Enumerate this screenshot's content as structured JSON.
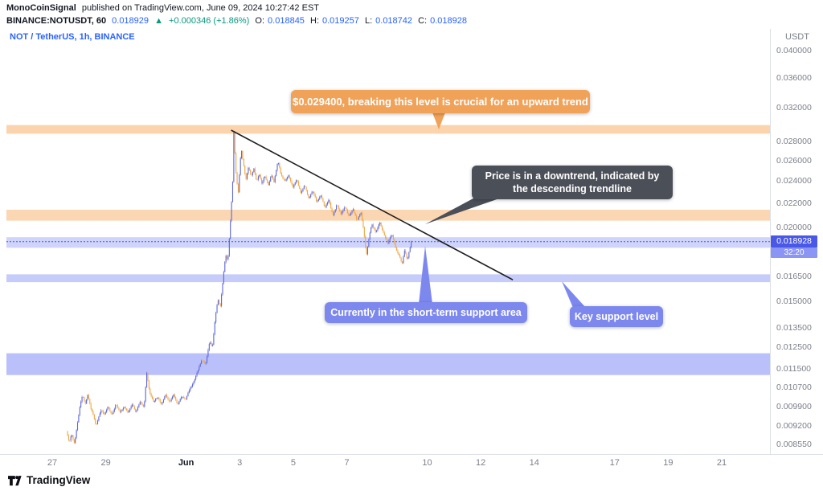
{
  "meta": {
    "publisher": "MonoCoinSignal",
    "published_line": "published on TradingView.com, June 09, 2024 10:27:42 EST",
    "symbol": "BINANCE:NOTUSDT, 60",
    "last_price": "0.018929",
    "direction_arrow": "▲",
    "change": "+0.000346 (+1.86%)",
    "ohlc": {
      "o_label": "O:",
      "o": "0.018845",
      "h_label": "H:",
      "h": "0.019257",
      "l_label": "L:",
      "l": "0.018742",
      "c_label": "C:",
      "c": "0.018928"
    }
  },
  "chart_legend": "NOT / TetherUS, 1h, BINANCE",
  "annotations": {
    "resistance_callout": "$0.029400, breaking this level is crucial for an upward trend",
    "downtrend_callout": "Price is in a downtrend, indicated by the descending trendline",
    "support_callout": "Currently in the short-term support area",
    "key_support_callout": "Key support level"
  },
  "price_axis": {
    "currency_label": "USDT",
    "labels": [
      "0.040000",
      "0.036000",
      "0.032000",
      "0.028000",
      "0.026000",
      "0.024000",
      "0.022000",
      "0.020000",
      "0.016500",
      "0.015000",
      "0.013500",
      "0.012500",
      "0.011500",
      "0.010700",
      "0.009900",
      "0.009200",
      "0.008550"
    ],
    "current_price_label": "0.018928",
    "countdown": "32:20"
  },
  "time_axis": {
    "labels": [
      {
        "text": "27",
        "day": 0
      },
      {
        "text": "29",
        "day": 2
      },
      {
        "text": "Jun",
        "day": 5,
        "major": true
      },
      {
        "text": "3",
        "day": 7
      },
      {
        "text": "5",
        "day": 9
      },
      {
        "text": "7",
        "day": 11
      },
      {
        "text": "10",
        "day": 14
      },
      {
        "text": "12",
        "day": 16
      },
      {
        "text": "14",
        "day": 18
      },
      {
        "text": "17",
        "day": 21
      },
      {
        "text": "19",
        "day": 23
      },
      {
        "text": "21",
        "day": 25
      }
    ]
  },
  "footer": {
    "brand": "TradingView"
  },
  "colors": {
    "accent_blue": "#2962ff",
    "green": "#089981",
    "text_dark": "#131722",
    "axis_text": "#7b7f8a",
    "up_candle": "#5e66d8",
    "down_candle": "#f0a43e",
    "trendline": "#1f1f1f",
    "callout_orange": "#f0a259",
    "callout_gray": "#4b4f58",
    "callout_blue": "#7d88ee",
    "price_tag_bg": "#4a58e8",
    "countdown_bg": "#8b95f4"
  },
  "chart_data": {
    "type": "candlestick",
    "symbol": "NOT/USDT",
    "exchange": "BINANCE",
    "timeframe": "1h",
    "scale": "log",
    "y_axis_range": [
      0.00826,
      0.0415
    ],
    "x_axis_note": "days since May 27 2024 00:00, axis drawn May 27 - Jun 21",
    "t_start": 0.55,
    "t_end": 13.43,
    "current_price": 0.018928,
    "trendline": {
      "from_day": 6.68,
      "from_price": 0.0293,
      "to_day": 17.2,
      "to_price": 0.0163
    },
    "bands": [
      {
        "name": "resistance-major",
        "price_from": 0.0289,
        "price_to": 0.0299,
        "fill": "rgba(247,174,103,0.55)"
      },
      {
        "name": "resistance-minor",
        "price_from": 0.02055,
        "price_to": 0.02145,
        "fill": "rgba(247,174,103,0.50)"
      },
      {
        "name": "support-current",
        "price_from": 0.01848,
        "price_to": 0.01926,
        "fill": "rgba(129,141,245,0.38)"
      },
      {
        "name": "support-key",
        "price_from": 0.01615,
        "price_to": 0.01665,
        "fill": "rgba(129,141,245,0.45)"
      },
      {
        "name": "support-deep",
        "price_from": 0.01122,
        "price_to": 0.01222,
        "fill": "rgba(129,141,245,0.55)"
      }
    ],
    "price_path": [
      [
        0.55,
        0.009
      ],
      [
        0.65,
        0.00862
      ],
      [
        0.75,
        0.0089
      ],
      [
        0.85,
        0.00855
      ],
      [
        0.95,
        0.0092
      ],
      [
        1.05,
        0.0099
      ],
      [
        1.15,
        0.0104
      ],
      [
        1.25,
        0.01
      ],
      [
        1.35,
        0.0104
      ],
      [
        1.45,
        0.0099
      ],
      [
        1.55,
        0.0096
      ],
      [
        1.65,
        0.0092
      ],
      [
        1.75,
        0.0095
      ],
      [
        1.85,
        0.0098
      ],
      [
        1.95,
        0.0096
      ],
      [
        2.1,
        0.0099
      ],
      [
        2.25,
        0.0096
      ],
      [
        2.4,
        0.01
      ],
      [
        2.55,
        0.0097
      ],
      [
        2.7,
        0.0099
      ],
      [
        2.85,
        0.0097
      ],
      [
        3.0,
        0.01
      ],
      [
        3.15,
        0.0097
      ],
      [
        3.3,
        0.0101
      ],
      [
        3.45,
        0.0099
      ],
      [
        3.55,
        0.0113
      ],
      [
        3.65,
        0.0105
      ],
      [
        3.8,
        0.0101
      ],
      [
        3.95,
        0.0103
      ],
      [
        4.1,
        0.01
      ],
      [
        4.25,
        0.0104
      ],
      [
        4.4,
        0.0101
      ],
      [
        4.55,
        0.0104
      ],
      [
        4.7,
        0.01
      ],
      [
        4.85,
        0.0103
      ],
      [
        5.0,
        0.0102
      ],
      [
        5.15,
        0.0106
      ],
      [
        5.3,
        0.0109
      ],
      [
        5.45,
        0.0114
      ],
      [
        5.6,
        0.0119
      ],
      [
        5.75,
        0.0117
      ],
      [
        5.9,
        0.0128
      ],
      [
        6.0,
        0.0125
      ],
      [
        6.1,
        0.0139
      ],
      [
        6.2,
        0.0151
      ],
      [
        6.3,
        0.0147
      ],
      [
        6.4,
        0.0164
      ],
      [
        6.5,
        0.018
      ],
      [
        6.58,
        0.0175
      ],
      [
        6.66,
        0.02
      ],
      [
        6.72,
        0.0222
      ],
      [
        6.76,
        0.024
      ],
      [
        6.8,
        0.029
      ],
      [
        6.85,
        0.0263
      ],
      [
        6.9,
        0.0241
      ],
      [
        6.97,
        0.0229
      ],
      [
        7.02,
        0.0252
      ],
      [
        7.08,
        0.0272
      ],
      [
        7.15,
        0.0259
      ],
      [
        7.25,
        0.0241
      ],
      [
        7.35,
        0.0254
      ],
      [
        7.45,
        0.0245
      ],
      [
        7.55,
        0.0252
      ],
      [
        7.65,
        0.0239
      ],
      [
        7.75,
        0.0247
      ],
      [
        7.85,
        0.0237
      ],
      [
        7.95,
        0.0245
      ],
      [
        8.1,
        0.0236
      ],
      [
        8.2,
        0.0246
      ],
      [
        8.3,
        0.0239
      ],
      [
        8.45,
        0.026
      ],
      [
        8.55,
        0.0247
      ],
      [
        8.7,
        0.024
      ],
      [
        8.85,
        0.0246
      ],
      [
        9.0,
        0.0234
      ],
      [
        9.15,
        0.0242
      ],
      [
        9.3,
        0.0229
      ],
      [
        9.45,
        0.0236
      ],
      [
        9.6,
        0.0224
      ],
      [
        9.75,
        0.0231
      ],
      [
        9.9,
        0.0221
      ],
      [
        10.05,
        0.0227
      ],
      [
        10.2,
        0.0216
      ],
      [
        10.35,
        0.0223
      ],
      [
        10.5,
        0.0209
      ],
      [
        10.65,
        0.0219
      ],
      [
        10.8,
        0.0211
      ],
      [
        10.95,
        0.0217
      ],
      [
        11.1,
        0.0209
      ],
      [
        11.25,
        0.0215
      ],
      [
        11.4,
        0.0206
      ],
      [
        11.55,
        0.0212
      ],
      [
        11.65,
        0.0198
      ],
      [
        11.75,
        0.0179
      ],
      [
        11.85,
        0.0192
      ],
      [
        11.95,
        0.0203
      ],
      [
        12.1,
        0.0196
      ],
      [
        12.25,
        0.0204
      ],
      [
        12.4,
        0.0195
      ],
      [
        12.55,
        0.0188
      ],
      [
        12.7,
        0.0195
      ],
      [
        12.85,
        0.0184
      ],
      [
        13.0,
        0.0178
      ],
      [
        13.08,
        0.0173
      ],
      [
        13.18,
        0.0183
      ],
      [
        13.28,
        0.0176
      ],
      [
        13.43,
        0.018928
      ]
    ]
  }
}
